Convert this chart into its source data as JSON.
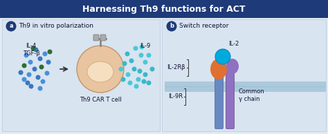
{
  "title": "Harnessing Th9 functions for ACT",
  "title_bg": "#1e3a78",
  "title_color": "#ffffff",
  "panel_bg": "#e2eaf4",
  "panel_a_label": "a",
  "panel_b_label": "b",
  "panel_a_title": "Th9 in vitro polarization",
  "panel_b_title": "Switch receptor",
  "label_circle_color": "#1e3a78",
  "label_circle_text_color": "#ffffff",
  "cell_outer_color": "#e8c4a0",
  "cell_inner_color": "#f5dfc0",
  "il4_tgfb_text": "IL-4\nTGF-β",
  "il9_text": "IL-9",
  "th9_car_text": "Th9 CAR T cell",
  "dot_colors_left": [
    "#4a90d9",
    "#3a78c0",
    "#4a90d9",
    "#3a78c0",
    "#2d6e2d",
    "#4a90d9",
    "#3a78c0",
    "#4a90d9",
    "#2d6e2d",
    "#3a78c0",
    "#4a90d9",
    "#3a78c0",
    "#2d6e2d",
    "#4a90d9",
    "#3a78c0",
    "#4a90d9",
    "#2d6e2d",
    "#3a78c0",
    "#4a90d9",
    "#3a78c0"
  ],
  "dot_colors_right": [
    "#3ab8c8",
    "#4ac8d8",
    "#3ab8c8",
    "#4ac8d8",
    "#3ab8c8",
    "#4ac8d8",
    "#3ab8c8",
    "#4ac8d8",
    "#3ab8c8",
    "#4ac8d8",
    "#3ab8c8",
    "#4ac8d8",
    "#3ab8c8",
    "#4ac8d8",
    "#3ab8c8",
    "#4ac8d8",
    "#3ab8c8",
    "#4ac8d8",
    "#3ab8c8",
    "#4ac8d8",
    "#3ab8c8",
    "#4ac8d8"
  ],
  "il2_color": "#00aadd",
  "il2rb_color": "#e07030",
  "gamma_chain_color": "#9070c0",
  "receptor_stem_color": "#7090c0",
  "membrane_color": "#90b8d0",
  "il2_text": "IL-2",
  "il2rb_text": "IL-2Rβ",
  "il9r_text": "IL-9R",
  "common_gamma_text": "Common\nγ chain"
}
